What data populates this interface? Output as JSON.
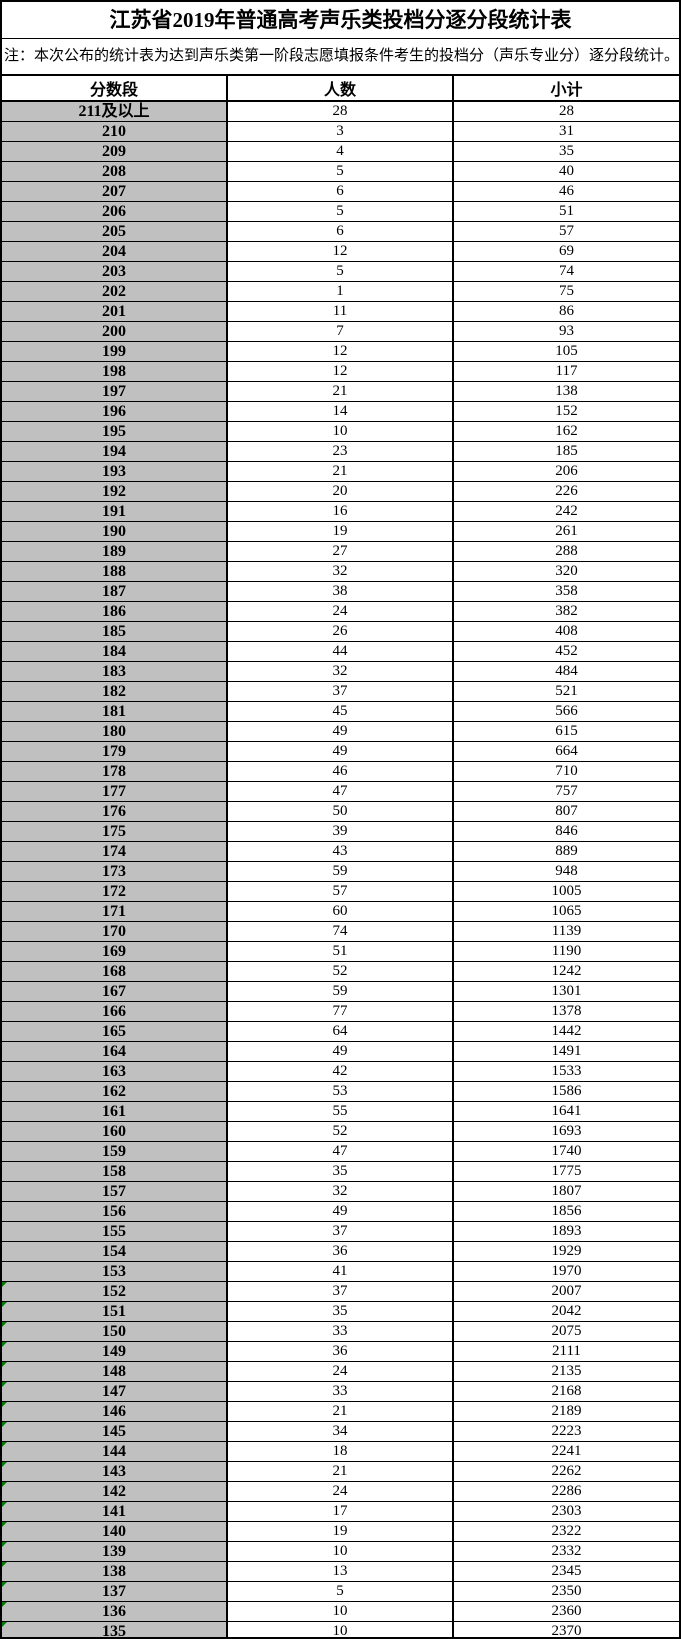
{
  "title": "江苏省2019年普通高考声乐类投档分逐分段统计表",
  "note": "注：本次公布的统计表为达到声乐类第一阶段志愿填报条件考生的投档分（声乐专业分）逐分段统计。",
  "colors": {
    "label_cell_bg": "#c0c0c0",
    "border": "#000000",
    "error_marker_green": "#007a00",
    "text": "#000000",
    "background": "#ffffff"
  },
  "error_marker_scores": [
    "152",
    "151",
    "150",
    "149",
    "148",
    "147",
    "146",
    "145",
    "144",
    "143",
    "142",
    "141",
    "140",
    "139",
    "138",
    "137",
    "136",
    "135"
  ],
  "chart_data": {
    "type": "table",
    "title": "江苏省2019年普通高考声乐类投档分逐分段统计表",
    "columns": [
      "分数段",
      "人数",
      "小计"
    ],
    "rows": [
      [
        "211及以上",
        28,
        28
      ],
      [
        "210",
        3,
        31
      ],
      [
        "209",
        4,
        35
      ],
      [
        "208",
        5,
        40
      ],
      [
        "207",
        6,
        46
      ],
      [
        "206",
        5,
        51
      ],
      [
        "205",
        6,
        57
      ],
      [
        "204",
        12,
        69
      ],
      [
        "203",
        5,
        74
      ],
      [
        "202",
        1,
        75
      ],
      [
        "201",
        11,
        86
      ],
      [
        "200",
        7,
        93
      ],
      [
        "199",
        12,
        105
      ],
      [
        "198",
        12,
        117
      ],
      [
        "197",
        21,
        138
      ],
      [
        "196",
        14,
        152
      ],
      [
        "195",
        10,
        162
      ],
      [
        "194",
        23,
        185
      ],
      [
        "193",
        21,
        206
      ],
      [
        "192",
        20,
        226
      ],
      [
        "191",
        16,
        242
      ],
      [
        "190",
        19,
        261
      ],
      [
        "189",
        27,
        288
      ],
      [
        "188",
        32,
        320
      ],
      [
        "187",
        38,
        358
      ],
      [
        "186",
        24,
        382
      ],
      [
        "185",
        26,
        408
      ],
      [
        "184",
        44,
        452
      ],
      [
        "183",
        32,
        484
      ],
      [
        "182",
        37,
        521
      ],
      [
        "181",
        45,
        566
      ],
      [
        "180",
        49,
        615
      ],
      [
        "179",
        49,
        664
      ],
      [
        "178",
        46,
        710
      ],
      [
        "177",
        47,
        757
      ],
      [
        "176",
        50,
        807
      ],
      [
        "175",
        39,
        846
      ],
      [
        "174",
        43,
        889
      ],
      [
        "173",
        59,
        948
      ],
      [
        "172",
        57,
        1005
      ],
      [
        "171",
        60,
        1065
      ],
      [
        "170",
        74,
        1139
      ],
      [
        "169",
        51,
        1190
      ],
      [
        "168",
        52,
        1242
      ],
      [
        "167",
        59,
        1301
      ],
      [
        "166",
        77,
        1378
      ],
      [
        "165",
        64,
        1442
      ],
      [
        "164",
        49,
        1491
      ],
      [
        "163",
        42,
        1533
      ],
      [
        "162",
        53,
        1586
      ],
      [
        "161",
        55,
        1641
      ],
      [
        "160",
        52,
        1693
      ],
      [
        "159",
        47,
        1740
      ],
      [
        "158",
        35,
        1775
      ],
      [
        "157",
        32,
        1807
      ],
      [
        "156",
        49,
        1856
      ],
      [
        "155",
        37,
        1893
      ],
      [
        "154",
        36,
        1929
      ],
      [
        "153",
        41,
        1970
      ],
      [
        "152",
        37,
        2007
      ],
      [
        "151",
        35,
        2042
      ],
      [
        "150",
        33,
        2075
      ],
      [
        "149",
        36,
        2111
      ],
      [
        "148",
        24,
        2135
      ],
      [
        "147",
        33,
        2168
      ],
      [
        "146",
        21,
        2189
      ],
      [
        "145",
        34,
        2223
      ],
      [
        "144",
        18,
        2241
      ],
      [
        "143",
        21,
        2262
      ],
      [
        "142",
        24,
        2286
      ],
      [
        "141",
        17,
        2303
      ],
      [
        "140",
        19,
        2322
      ],
      [
        "139",
        10,
        2332
      ],
      [
        "138",
        13,
        2345
      ],
      [
        "137",
        5,
        2350
      ],
      [
        "136",
        10,
        2360
      ],
      [
        "135",
        10,
        2370
      ]
    ]
  }
}
